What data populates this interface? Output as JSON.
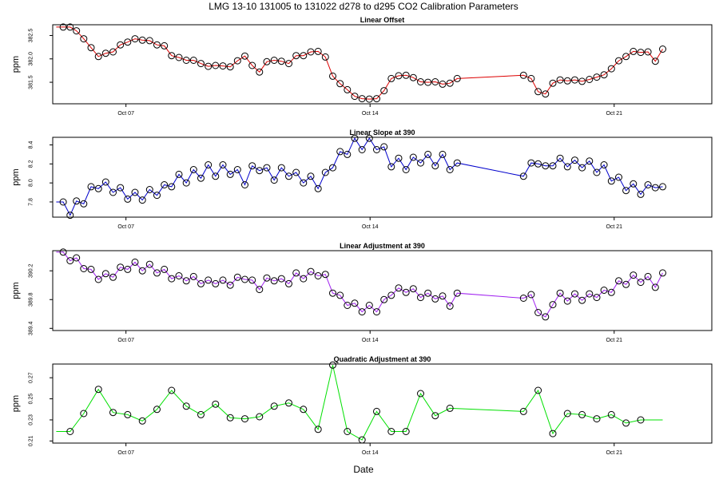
{
  "chart_data": {
    "type": "line",
    "title": "LMG   13-10    131005 to 131022    d278 to d295   CO2 Calibration Parameters",
    "xlabel": "Date",
    "x_unit": "day of October 2013",
    "x_range": [
      4.9,
      23.8
    ],
    "x_ticks": [
      {
        "value": 7,
        "label": "Oct 07"
      },
      {
        "value": 14,
        "label": "Oct 14"
      },
      {
        "value": 21,
        "label": "Oct 21"
      }
    ],
    "panels": [
      {
        "name": "linear-offset",
        "title": "Linear Offset",
        "ylabel": "ppm",
        "color": "#dd0000",
        "ylim": [
          381.04,
          382.73
        ],
        "y_ticks": [
          "381.5",
          "382.0",
          "382.5"
        ],
        "y_tick_values": [
          381.5,
          382.0,
          382.5
        ],
        "points": [
          [
            5.0,
            382.68
          ],
          [
            5.2,
            382.68
          ],
          [
            5.4,
            382.68
          ],
          [
            5.58,
            382.6
          ],
          [
            5.79,
            382.43
          ],
          [
            6.0,
            382.24
          ],
          [
            6.21,
            382.05
          ],
          [
            6.42,
            382.12
          ],
          [
            6.63,
            382.15
          ],
          [
            6.84,
            382.3
          ],
          [
            7.05,
            382.36
          ],
          [
            7.26,
            382.43
          ],
          [
            7.47,
            382.4
          ],
          [
            7.68,
            382.39
          ],
          [
            7.89,
            382.3
          ],
          [
            8.1,
            382.28
          ],
          [
            8.31,
            382.07
          ],
          [
            8.52,
            382.03
          ],
          [
            8.73,
            381.97
          ],
          [
            8.94,
            381.97
          ],
          [
            9.15,
            381.9
          ],
          [
            9.36,
            381.84
          ],
          [
            9.57,
            381.86
          ],
          [
            9.78,
            381.85
          ],
          [
            9.99,
            381.83
          ],
          [
            10.2,
            381.96
          ],
          [
            10.41,
            382.06
          ],
          [
            10.62,
            381.86
          ],
          [
            10.83,
            381.72
          ],
          [
            11.04,
            381.94
          ],
          [
            11.25,
            381.97
          ],
          [
            11.46,
            381.95
          ],
          [
            11.67,
            381.9
          ],
          [
            11.88,
            382.07
          ],
          [
            12.09,
            382.07
          ],
          [
            12.3,
            382.15
          ],
          [
            12.51,
            382.16
          ],
          [
            12.72,
            382.04
          ],
          [
            12.93,
            381.63
          ],
          [
            13.14,
            381.47
          ],
          [
            13.35,
            381.34
          ],
          [
            13.56,
            381.2
          ],
          [
            13.77,
            381.15
          ],
          [
            13.98,
            381.14
          ],
          [
            14.19,
            381.15
          ],
          [
            14.4,
            381.32
          ],
          [
            14.61,
            381.58
          ],
          [
            14.82,
            381.64
          ],
          [
            15.03,
            381.65
          ],
          [
            15.24,
            381.6
          ],
          [
            15.45,
            381.51
          ],
          [
            15.66,
            381.5
          ],
          [
            15.87,
            381.51
          ],
          [
            16.08,
            381.46
          ],
          [
            16.29,
            381.48
          ],
          [
            16.5,
            381.58
          ],
          [
            18.4,
            381.65
          ],
          [
            18.62,
            381.58
          ],
          [
            18.82,
            381.3
          ],
          [
            19.03,
            381.25
          ],
          [
            19.24,
            381.48
          ],
          [
            19.45,
            381.55
          ],
          [
            19.66,
            381.53
          ],
          [
            19.87,
            381.55
          ],
          [
            20.08,
            381.52
          ],
          [
            20.29,
            381.56
          ],
          [
            20.5,
            381.61
          ],
          [
            20.71,
            381.66
          ],
          [
            20.92,
            381.79
          ],
          [
            21.13,
            381.96
          ],
          [
            21.34,
            382.05
          ],
          [
            21.55,
            382.16
          ],
          [
            21.76,
            382.14
          ],
          [
            21.97,
            382.15
          ],
          [
            22.18,
            381.95
          ],
          [
            22.39,
            382.21
          ]
        ]
      },
      {
        "name": "linear-slope",
        "title": "Linear Slope at 390",
        "ylabel": "ppm",
        "color": "#0000cc",
        "ylim": [
          7.64,
          8.48
        ],
        "y_ticks": [
          "7.8",
          "8.0",
          "8.2",
          "8.4"
        ],
        "y_tick_values": [
          7.8,
          8.0,
          8.2,
          8.4
        ],
        "points": [
          [
            5.0,
            7.8
          ],
          [
            5.2,
            7.8
          ],
          [
            5.4,
            7.66
          ],
          [
            5.58,
            7.81
          ],
          [
            5.79,
            7.78
          ],
          [
            6.0,
            7.96
          ],
          [
            6.21,
            7.94
          ],
          [
            6.42,
            8.01
          ],
          [
            6.63,
            7.9
          ],
          [
            6.84,
            7.95
          ],
          [
            7.05,
            7.83
          ],
          [
            7.26,
            7.9
          ],
          [
            7.47,
            7.82
          ],
          [
            7.68,
            7.93
          ],
          [
            7.89,
            7.87
          ],
          [
            8.1,
            7.98
          ],
          [
            8.31,
            7.96
          ],
          [
            8.52,
            8.09
          ],
          [
            8.73,
            8.0
          ],
          [
            8.94,
            8.14
          ],
          [
            9.15,
            8.05
          ],
          [
            9.36,
            8.19
          ],
          [
            9.57,
            8.07
          ],
          [
            9.78,
            8.19
          ],
          [
            9.99,
            8.09
          ],
          [
            10.2,
            8.14
          ],
          [
            10.41,
            7.98
          ],
          [
            10.62,
            8.18
          ],
          [
            10.83,
            8.13
          ],
          [
            11.04,
            8.16
          ],
          [
            11.25,
            8.03
          ],
          [
            11.46,
            8.16
          ],
          [
            11.67,
            8.07
          ],
          [
            11.88,
            8.11
          ],
          [
            12.09,
            8.0
          ],
          [
            12.3,
            8.07
          ],
          [
            12.51,
            7.94
          ],
          [
            12.72,
            8.11
          ],
          [
            12.93,
            8.16
          ],
          [
            13.14,
            8.33
          ],
          [
            13.35,
            8.3
          ],
          [
            13.56,
            8.47
          ],
          [
            13.77,
            8.35
          ],
          [
            13.98,
            8.47
          ],
          [
            14.19,
            8.35
          ],
          [
            14.4,
            8.38
          ],
          [
            14.61,
            8.17
          ],
          [
            14.82,
            8.26
          ],
          [
            15.03,
            8.14
          ],
          [
            15.24,
            8.27
          ],
          [
            15.45,
            8.21
          ],
          [
            15.66,
            8.3
          ],
          [
            15.87,
            8.18
          ],
          [
            16.08,
            8.3
          ],
          [
            16.29,
            8.14
          ],
          [
            16.5,
            8.21
          ],
          [
            18.4,
            8.07
          ],
          [
            18.62,
            8.21
          ],
          [
            18.82,
            8.2
          ],
          [
            19.03,
            8.18
          ],
          [
            19.24,
            8.18
          ],
          [
            19.45,
            8.26
          ],
          [
            19.66,
            8.17
          ],
          [
            19.87,
            8.24
          ],
          [
            20.08,
            8.16
          ],
          [
            20.29,
            8.23
          ],
          [
            20.5,
            8.11
          ],
          [
            20.71,
            8.19
          ],
          [
            20.92,
            8.02
          ],
          [
            21.13,
            8.06
          ],
          [
            21.34,
            7.92
          ],
          [
            21.55,
            7.99
          ],
          [
            21.76,
            7.88
          ],
          [
            21.97,
            7.98
          ],
          [
            22.18,
            7.95
          ],
          [
            22.39,
            7.96
          ]
        ]
      },
      {
        "name": "linear-adjustment",
        "title": "Linear Adjustment at 390",
        "ylabel": "ppm",
        "color": "#a020f0",
        "ylim": [
          389.37,
          390.48
        ],
        "y_ticks": [
          "389.4",
          "389.8",
          "390.2"
        ],
        "y_tick_values": [
          389.4,
          389.8,
          390.2
        ],
        "points": [
          [
            5.0,
            390.46
          ],
          [
            5.2,
            390.46
          ],
          [
            5.4,
            390.34
          ],
          [
            5.58,
            390.38
          ],
          [
            5.79,
            390.23
          ],
          [
            6.0,
            390.22
          ],
          [
            6.21,
            390.08
          ],
          [
            6.42,
            390.16
          ],
          [
            6.63,
            390.11
          ],
          [
            6.84,
            390.25
          ],
          [
            7.05,
            390.22
          ],
          [
            7.26,
            390.32
          ],
          [
            7.47,
            390.2
          ],
          [
            7.68,
            390.29
          ],
          [
            7.89,
            390.17
          ],
          [
            8.1,
            390.22
          ],
          [
            8.31,
            390.09
          ],
          [
            8.52,
            390.13
          ],
          [
            8.73,
            390.06
          ],
          [
            8.94,
            390.12
          ],
          [
            9.15,
            390.02
          ],
          [
            9.36,
            390.07
          ],
          [
            9.57,
            390.02
          ],
          [
            9.78,
            390.07
          ],
          [
            9.99,
            390.0
          ],
          [
            10.2,
            390.11
          ],
          [
            10.41,
            390.08
          ],
          [
            10.62,
            390.07
          ],
          [
            10.83,
            389.94
          ],
          [
            11.04,
            390.1
          ],
          [
            11.25,
            390.06
          ],
          [
            11.46,
            390.09
          ],
          [
            11.67,
            390.02
          ],
          [
            11.88,
            390.17
          ],
          [
            12.09,
            390.09
          ],
          [
            12.3,
            390.19
          ],
          [
            12.51,
            390.13
          ],
          [
            12.72,
            390.15
          ],
          [
            12.93,
            389.89
          ],
          [
            13.14,
            389.86
          ],
          [
            13.35,
            389.72
          ],
          [
            13.56,
            389.75
          ],
          [
            13.77,
            389.63
          ],
          [
            13.98,
            389.72
          ],
          [
            14.19,
            389.63
          ],
          [
            14.4,
            389.8
          ],
          [
            14.61,
            389.86
          ],
          [
            14.82,
            389.96
          ],
          [
            15.03,
            389.9
          ],
          [
            15.24,
            389.95
          ],
          [
            15.45,
            389.83
          ],
          [
            15.66,
            389.89
          ],
          [
            15.87,
            389.81
          ],
          [
            16.08,
            389.85
          ],
          [
            16.29,
            389.71
          ],
          [
            16.5,
            389.89
          ],
          [
            18.4,
            389.82
          ],
          [
            18.62,
            389.87
          ],
          [
            18.82,
            389.62
          ],
          [
            19.03,
            389.56
          ],
          [
            19.24,
            389.73
          ],
          [
            19.45,
            389.89
          ],
          [
            19.66,
            389.78
          ],
          [
            19.87,
            389.88
          ],
          [
            20.08,
            389.79
          ],
          [
            20.29,
            389.88
          ],
          [
            20.5,
            389.83
          ],
          [
            20.71,
            389.93
          ],
          [
            20.92,
            389.9
          ],
          [
            21.13,
            390.06
          ],
          [
            21.34,
            390.01
          ],
          [
            21.55,
            390.14
          ],
          [
            21.76,
            390.04
          ],
          [
            21.97,
            390.12
          ],
          [
            22.18,
            389.97
          ],
          [
            22.39,
            390.17
          ]
        ]
      },
      {
        "name": "quadratic-adjustment",
        "title": "Quadratic Adjustment at 390",
        "ylabel": "ppm",
        "color": "#00e000",
        "ylim": [
          0.208,
          0.283
        ],
        "y_ticks": [
          "0.21",
          "0.23",
          "0.25",
          "0.27"
        ],
        "y_tick_values": [
          0.21,
          0.23,
          0.25,
          0.27
        ],
        "points": [
          [
            5.0,
            0.219
          ],
          [
            5.4,
            0.219
          ],
          [
            5.79,
            0.236
          ],
          [
            6.21,
            0.259
          ],
          [
            6.63,
            0.237
          ],
          [
            7.05,
            0.235
          ],
          [
            7.47,
            0.229
          ],
          [
            7.89,
            0.24
          ],
          [
            8.31,
            0.258
          ],
          [
            8.73,
            0.243
          ],
          [
            9.15,
            0.235
          ],
          [
            9.57,
            0.245
          ],
          [
            9.99,
            0.232
          ],
          [
            10.41,
            0.231
          ],
          [
            10.83,
            0.233
          ],
          [
            11.25,
            0.243
          ],
          [
            11.67,
            0.246
          ],
          [
            12.09,
            0.24
          ],
          [
            12.51,
            0.221
          ],
          [
            12.93,
            0.282
          ],
          [
            13.35,
            0.219
          ],
          [
            13.77,
            0.211
          ],
          [
            14.19,
            0.238
          ],
          [
            14.61,
            0.219
          ],
          [
            15.03,
            0.219
          ],
          [
            15.45,
            0.255
          ],
          [
            15.87,
            0.234
          ],
          [
            16.29,
            0.241
          ],
          [
            18.4,
            0.238
          ],
          [
            18.82,
            0.258
          ],
          [
            19.24,
            0.217
          ],
          [
            19.66,
            0.236
          ],
          [
            20.08,
            0.235
          ],
          [
            20.5,
            0.231
          ],
          [
            20.92,
            0.235
          ],
          [
            21.34,
            0.227
          ],
          [
            21.76,
            0.23
          ],
          [
            22.39,
            0.23
          ]
        ]
      }
    ]
  }
}
